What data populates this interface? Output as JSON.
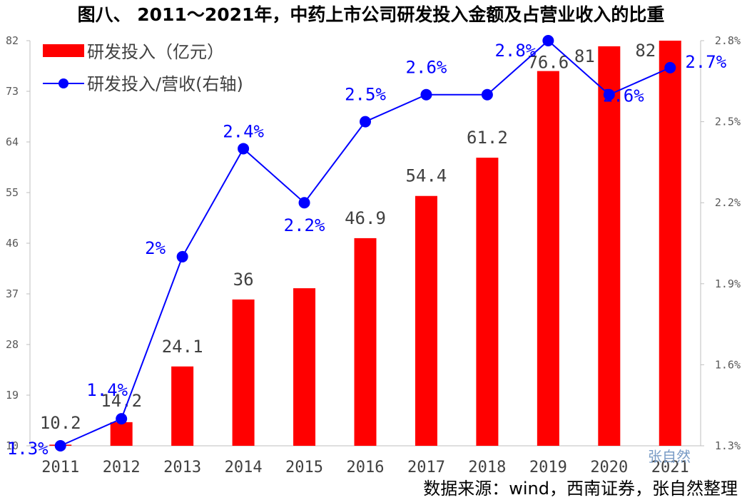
{
  "title": "图八、 2011～2021年，中药上市公司研发投入金额及占营业收入的比重",
  "source": "数据来源：wind，西南证券，张自然整理",
  "watermark": "张自然",
  "colors": {
    "bar": "#ff0000",
    "line": "#0000ff",
    "axis": "#bfbfbf"
  },
  "chart_data": {
    "type": "bar+line",
    "categories": [
      "2011",
      "2012",
      "2013",
      "2014",
      "2015",
      "2016",
      "2017",
      "2018",
      "2019",
      "2020",
      "2021"
    ],
    "series": [
      {
        "name": "研发投入（亿元）",
        "kind": "bar",
        "axis": "left",
        "values": [
          10.2,
          14.2,
          24.1,
          36,
          38,
          46.9,
          54.4,
          61.2,
          76.6,
          81,
          82
        ],
        "labels": [
          "10.2",
          "14.2",
          "24.1",
          "36",
          "",
          "46.9",
          "54.4",
          "61.2",
          "76.6",
          "81",
          "82"
        ]
      },
      {
        "name": "研发投入/营收(右轴)",
        "kind": "line",
        "axis": "right",
        "values": [
          1.3,
          1.4,
          2.0,
          2.4,
          2.2,
          2.5,
          2.6,
          2.6,
          2.8,
          2.6,
          2.7
        ],
        "labels": [
          "1.3%",
          "1.4%",
          "2%",
          "2.4%",
          "2.2%",
          "2.5%",
          "2.6%",
          "",
          "2.8%",
          "2.6%",
          "2.7%"
        ]
      }
    ],
    "left_axis": {
      "min": 10,
      "max": 82,
      "ticks": [
        10,
        19,
        28,
        37,
        46,
        55,
        64,
        73,
        82
      ],
      "tick_labels": [
        "10",
        "19",
        "28",
        "37",
        "46",
        "55",
        "64",
        "73",
        "82"
      ]
    },
    "right_axis": {
      "min": 1.3,
      "max": 2.8,
      "ticks": [
        1.3,
        1.6,
        1.9,
        2.2,
        2.5,
        2.8
      ],
      "tick_labels": [
        "1.3%",
        "1.6%",
        "1.9%",
        "2.2%",
        "2.5%",
        "2.8%"
      ]
    },
    "legend": "top-left",
    "grid": false
  }
}
